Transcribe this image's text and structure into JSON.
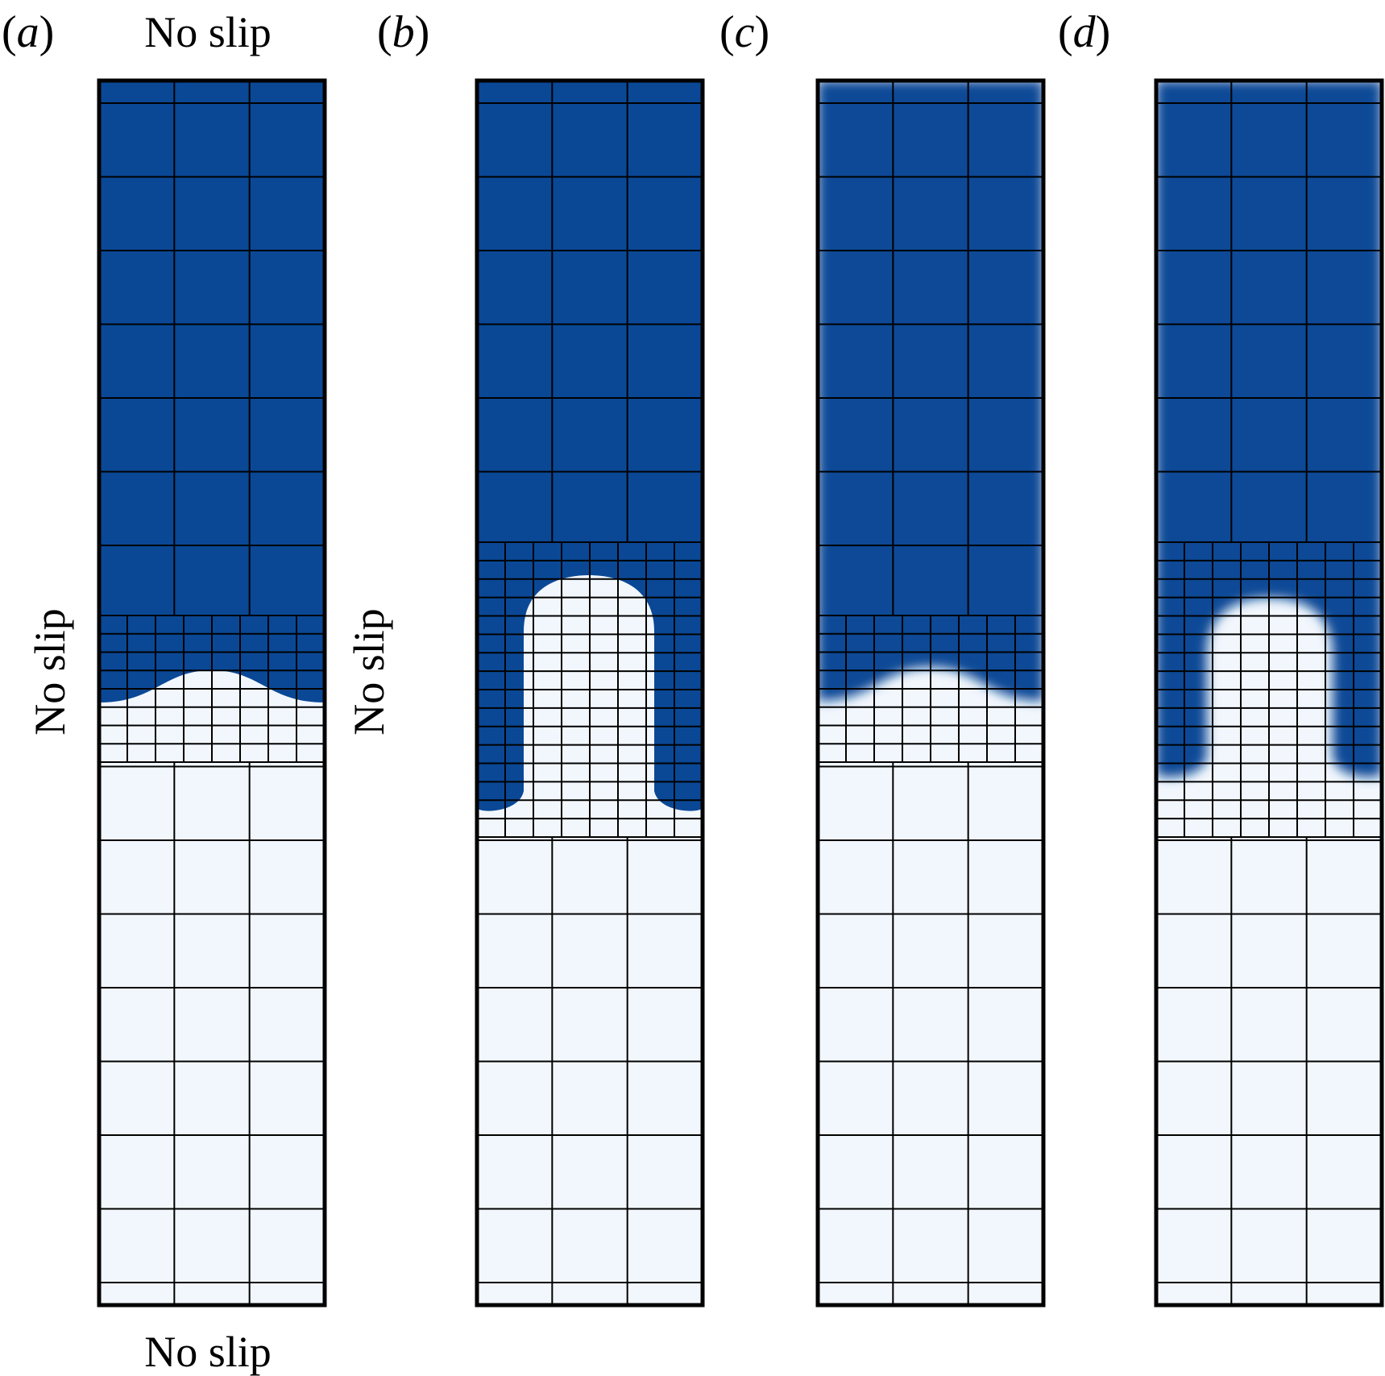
{
  "colors": {
    "heavy_fluid": "#0a4896",
    "light_fluid": "#f2f7fd",
    "grid_line": "#000000",
    "frame": "#000000"
  },
  "boundary_condition_label": "No slip",
  "panels": [
    {
      "id": "a",
      "label": "a",
      "interface": "sharp",
      "coarse_columns": 3,
      "fine_columns": 8
    },
    {
      "id": "b",
      "label": "b",
      "interface": "sharp",
      "coarse_columns": 3,
      "fine_columns": 8
    },
    {
      "id": "c",
      "label": "c",
      "interface": "diffuse",
      "coarse_columns": 3,
      "fine_columns": 8
    },
    {
      "id": "d",
      "label": "d",
      "interface": "diffuse",
      "coarse_columns": 3,
      "fine_columns": 8
    }
  ]
}
